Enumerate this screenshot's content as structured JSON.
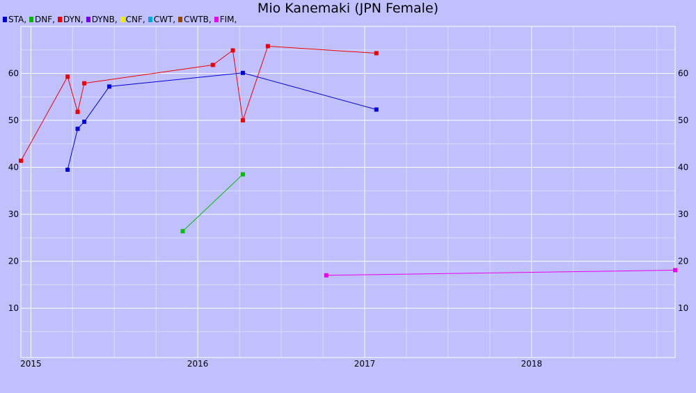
{
  "chart_data": {
    "type": "line",
    "title": "Mio Kanemaki (JPN Female)",
    "legend": {
      "placement": "top-left",
      "entries": [
        {
          "label": "STA,",
          "color": "#0000dd"
        },
        {
          "label": "DNF,",
          "color": "#00bb00"
        },
        {
          "label": "DYN,",
          "color": "#ee0000"
        },
        {
          "label": "DYNB,",
          "color": "#7700ee"
        },
        {
          "label": "CNF,",
          "color": "#eeee00"
        },
        {
          "label": "CWT,",
          "color": "#00aadd"
        },
        {
          "label": "CWTB,",
          "color": "#994400"
        },
        {
          "label": "FIM,",
          "color": "#ee00ee"
        }
      ]
    },
    "xlim": [
      2014.94,
      2018.86
    ],
    "ylim": [
      -0.5,
      70
    ],
    "grid": true,
    "x_ticks": [
      2015,
      2016,
      2017,
      2018
    ],
    "x_tick_labels": [
      "2015",
      "2016",
      "2017",
      "2018"
    ],
    "y_ticks": [
      10,
      20,
      30,
      40,
      50,
      60
    ],
    "y_tick_labels": [
      "10",
      "20",
      "30",
      "40",
      "50",
      "60"
    ],
    "series": [
      {
        "name": "STA",
        "color": "#0000dd",
        "points": [
          [
            2015.22,
            39.5
          ],
          [
            2015.28,
            48.2
          ],
          [
            2015.32,
            49.7
          ],
          [
            2015.47,
            57.2
          ],
          [
            2016.27,
            60.1
          ],
          [
            2017.07,
            52.3
          ]
        ]
      },
      {
        "name": "DNF",
        "color": "#00bb00",
        "points": [
          [
            2015.91,
            26.4
          ],
          [
            2016.27,
            38.5
          ]
        ]
      },
      {
        "name": "DYN",
        "color": "#ee0000",
        "points": [
          [
            2014.94,
            41.4
          ],
          [
            2015.22,
            59.3
          ],
          [
            2015.28,
            51.8
          ],
          [
            2015.32,
            57.9
          ],
          [
            2016.09,
            61.8
          ],
          [
            2016.21,
            64.9
          ],
          [
            2016.27,
            50.0
          ],
          [
            2016.42,
            65.8
          ],
          [
            2017.07,
            64.3
          ]
        ]
      },
      {
        "name": "FIM",
        "color": "#ee00ee",
        "points": [
          [
            2016.77,
            17.0
          ],
          [
            2018.86,
            18.1
          ]
        ]
      }
    ]
  }
}
